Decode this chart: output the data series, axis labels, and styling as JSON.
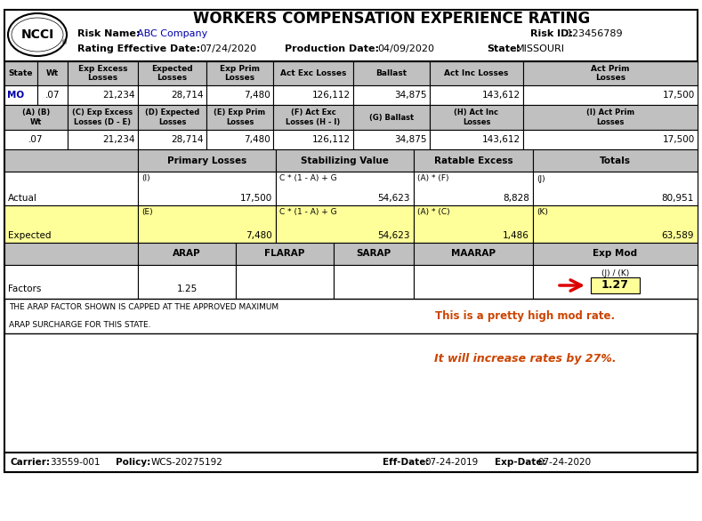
{
  "title": "WORKERS COMPENSATION EXPERIENCE RATING",
  "risk_name": "ABC Company",
  "risk_id": "123456789",
  "rating_eff_date": "07/24/2020",
  "production_date": "04/09/2020",
  "state": "MISSOURI",
  "header_row1": [
    "State",
    "Wt",
    "Exp Excess\nLosses",
    "Expected\nLosses",
    "Exp Prim\nLosses",
    "Act Exc Losses",
    "Ballast",
    "Act Inc Losses",
    "Act Prim\nLosses"
  ],
  "data_row1": [
    "MO",
    ".07",
    "21,234",
    "28,714",
    "7,480",
    "126,112",
    "34,875",
    "143,612",
    "17,500"
  ],
  "header_row2_col0": "(A) (B)\nWt",
  "header_row2": [
    "(C) Exp Excess\nLosses (D - E)",
    "(D) Expected\nLosses",
    "(E) Exp Prim\nLosses",
    "(F) Act Exc\nLosses (H - I)",
    "(G) Ballast",
    "(H) Act Inc\nLosses",
    "(I) Act Prim\nLosses"
  ],
  "data_row2": [
    ".07",
    "21,234",
    "28,714",
    "7,480",
    "126,112",
    "34,875",
    "143,612",
    "17,500"
  ],
  "sec2_headers": [
    "",
    "Primary Losses",
    "Stabilizing Value",
    "Ratable Excess",
    "Totals"
  ],
  "actual_formulas": [
    "",
    "(I)",
    "C * (1 - A) + G",
    "(A) * (F)",
    "(J)"
  ],
  "actual_values": [
    "Actual",
    "17,500",
    "54,623",
    "8,828",
    "80,951"
  ],
  "expected_formulas": [
    "",
    "(E)",
    "C * (1 - A) + G",
    "(A) * (C)",
    "(K)"
  ],
  "expected_values": [
    "Expected",
    "7,480",
    "54,623",
    "1,486",
    "63,589"
  ],
  "factors_headers": [
    "",
    "ARAP",
    "FLARAP",
    "SARAP",
    "MAARAP",
    "Exp Mod"
  ],
  "factors_values": [
    "Factors",
    "1.25",
    "",
    "",
    "",
    "1.27"
  ],
  "footnote_line1": "THE ARAP FACTOR SHOWN IS CAPPED AT THE APPROVED MAXIMUM",
  "footnote_line2": "ARAP SURCHARGE FOR THIS STATE.",
  "comment1": "This is a pretty high mod rate.",
  "comment2": "It will increase rates by 27%.",
  "carrier": "33559-001",
  "policy": "WCS-20275192",
  "eff_date": "07-24-2019",
  "exp_date": "07-24-2020",
  "bg_color": "#FFFFFF",
  "header_bg": "#C0C0C0",
  "yellow_bg": "#FFFF99",
  "orange_color": "#CC4400",
  "red_color": "#DD0000",
  "blue_color": "#0000AA"
}
